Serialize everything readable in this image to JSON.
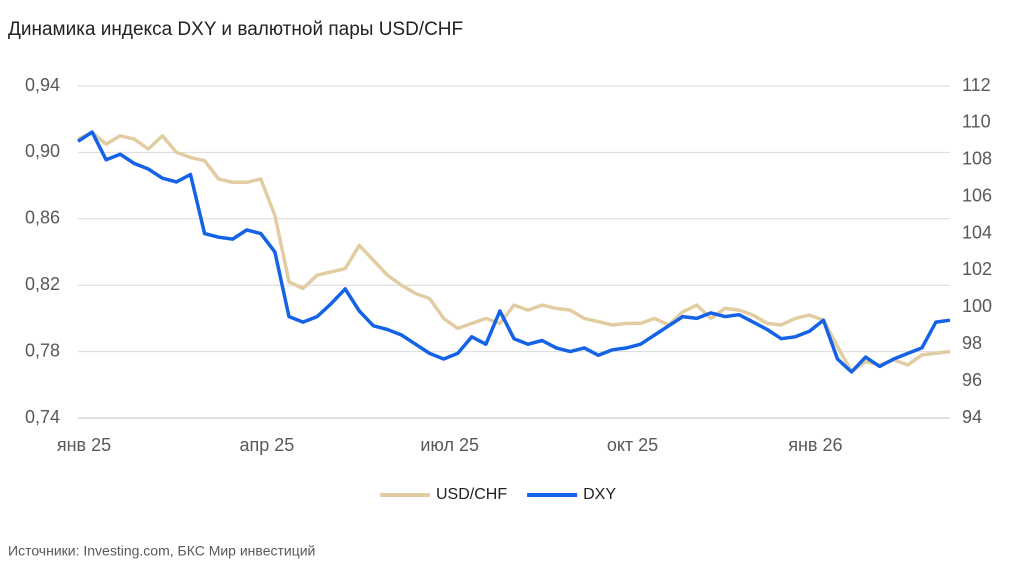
{
  "chart_data": {
    "type": "line",
    "title": "Динамика индекса DXY и валютной пары USD/CHF",
    "source": "Источники: Investing.com, БКС Мир инвестиций",
    "categories": [
      "янв 25",
      null,
      null,
      null,
      null,
      null,
      null,
      null,
      null,
      null,
      null,
      null,
      null,
      "апр 25",
      null,
      null,
      null,
      null,
      null,
      null,
      null,
      null,
      null,
      null,
      null,
      null,
      "июл 25",
      null,
      null,
      null,
      null,
      null,
      null,
      null,
      null,
      null,
      null,
      null,
      null,
      "окт 25",
      null,
      null,
      null,
      null,
      null,
      null,
      null,
      null,
      null,
      null,
      null,
      null,
      "янв 26",
      null,
      null,
      null,
      null,
      null,
      null,
      null,
      null,
      null,
      null
    ],
    "series": [
      {
        "name": "USD/CHF",
        "color": "#e2cca2",
        "values": [
          0.908,
          0.912,
          0.905,
          0.91,
          0.908,
          0.902,
          0.91,
          0.9,
          0.897,
          0.895,
          0.884,
          0.882,
          0.882,
          0.884,
          0.862,
          0.822,
          0.818,
          0.826,
          0.828,
          0.83,
          0.844,
          0.835,
          0.826,
          0.82,
          0.815,
          0.812,
          0.8,
          0.794,
          0.797,
          0.8,
          0.797,
          0.808,
          0.805,
          0.808,
          0.806,
          0.805,
          0.8,
          0.798,
          0.796,
          0.797,
          0.797,
          0.8,
          0.796,
          0.804,
          0.808,
          0.8,
          0.806,
          0.805,
          0.802,
          0.797,
          0.796,
          0.8,
          0.802,
          0.799,
          0.783,
          0.768,
          0.774,
          0.772,
          0.775,
          0.772,
          0.778,
          0.779,
          0.78
        ]
      },
      {
        "name": "DXY",
        "color": "#1463e6",
        "axis": "y2",
        "values": [
          109.0,
          109.5,
          108.0,
          108.3,
          107.8,
          107.5,
          107.0,
          106.8,
          107.2,
          104.0,
          103.8,
          103.7,
          104.2,
          104.0,
          103.0,
          99.5,
          99.2,
          99.5,
          100.2,
          101.0,
          99.8,
          99.0,
          98.8,
          98.5,
          98.0,
          97.5,
          97.2,
          97.5,
          98.4,
          98.0,
          99.8,
          98.3,
          98.0,
          98.2,
          97.8,
          97.6,
          97.8,
          97.4,
          97.7,
          97.8,
          98.0,
          98.5,
          99.0,
          99.5,
          99.4,
          99.7,
          99.5,
          99.6,
          99.2,
          98.8,
          98.3,
          98.4,
          98.7,
          99.3,
          97.2,
          96.5,
          97.3,
          96.8,
          97.2,
          97.5,
          97.8,
          99.2,
          99.3
        ]
      }
    ],
    "ylim": [
      0.74,
      0.94
    ],
    "yticks": [
      {
        "value": 0.74,
        "label": "0,74"
      },
      {
        "value": 0.78,
        "label": "0,78"
      },
      {
        "value": 0.82,
        "label": "0,82"
      },
      {
        "value": 0.86,
        "label": "0,86"
      },
      {
        "value": 0.9,
        "label": "0,90"
      },
      {
        "value": 0.94,
        "label": "0,94"
      }
    ],
    "y2lim": [
      94,
      112
    ],
    "y2ticks": [
      94,
      96,
      98,
      100,
      102,
      104,
      106,
      108,
      110,
      112
    ],
    "grid": true,
    "legend": "bottom"
  }
}
